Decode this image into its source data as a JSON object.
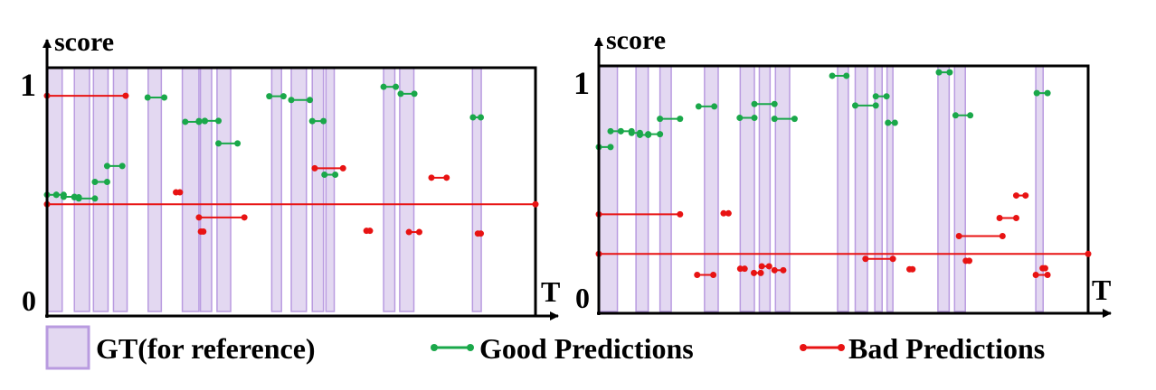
{
  "colors": {
    "gt_fill": "#e3d8f1",
    "gt_stroke": "#b99be0",
    "good": "#1aa84a",
    "bad": "#e81313",
    "axis": "#000000"
  },
  "legend": {
    "gt": "GT(for reference)",
    "good": "Good Predictions",
    "bad": "Bad Predictions"
  },
  "chart_data": [
    {
      "type": "interval",
      "title": "",
      "ylabel": "score",
      "xlabel": "T",
      "y_ticks": [
        "0",
        "1"
      ],
      "ylim": [
        0,
        1
      ],
      "xlim": [
        0,
        1
      ],
      "gt": [
        [
          0.0,
          0.031
        ],
        [
          0.056,
          0.087
        ],
        [
          0.095,
          0.125
        ],
        [
          0.136,
          0.164
        ],
        [
          0.207,
          0.234
        ],
        [
          0.277,
          0.311
        ],
        [
          0.314,
          0.337
        ],
        [
          0.348,
          0.376
        ],
        [
          0.46,
          0.48
        ],
        [
          0.5,
          0.531
        ],
        [
          0.543,
          0.566
        ],
        [
          0.571,
          0.588
        ],
        [
          0.689,
          0.712
        ],
        [
          0.722,
          0.751
        ],
        [
          0.871,
          0.889
        ]
      ],
      "good": [
        [
          0.0,
          0.019,
          0.488
        ],
        [
          0.019,
          0.034,
          0.488
        ],
        [
          0.034,
          0.056,
          0.48
        ],
        [
          0.056,
          0.065,
          0.478
        ],
        [
          0.065,
          0.098,
          0.473
        ],
        [
          0.098,
          0.123,
          0.54
        ],
        [
          0.123,
          0.154,
          0.604
        ],
        [
          0.206,
          0.24,
          0.88
        ],
        [
          0.283,
          0.311,
          0.782
        ],
        [
          0.311,
          0.323,
          0.785
        ],
        [
          0.323,
          0.351,
          0.786
        ],
        [
          0.351,
          0.39,
          0.695
        ],
        [
          0.455,
          0.484,
          0.885
        ],
        [
          0.5,
          0.538,
          0.87
        ],
        [
          0.543,
          0.566,
          0.785
        ],
        [
          0.568,
          0.59,
          0.569
        ],
        [
          0.689,
          0.714,
          0.923
        ],
        [
          0.724,
          0.752,
          0.895
        ],
        [
          0.872,
          0.888,
          0.8
        ]
      ],
      "bad": [
        [
          0.0,
          0.161,
          0.887
        ],
        [
          0.0,
          1.0,
          0.45
        ],
        [
          0.264,
          0.272,
          0.498
        ],
        [
          0.311,
          0.404,
          0.397
        ],
        [
          0.315,
          0.32,
          0.34
        ],
        [
          0.548,
          0.606,
          0.595
        ],
        [
          0.654,
          0.661,
          0.343
        ],
        [
          0.741,
          0.762,
          0.338
        ],
        [
          0.787,
          0.818,
          0.557
        ],
        [
          0.882,
          0.888,
          0.332
        ]
      ]
    },
    {
      "type": "interval",
      "title": "",
      "ylabel": "score",
      "xlabel": "T",
      "y_ticks": [
        "0",
        "1"
      ],
      "ylim": [
        0,
        1
      ],
      "xlim": [
        0,
        1
      ],
      "gt": [
        [
          0.0,
          0.038
        ],
        [
          0.076,
          0.101
        ],
        [
          0.125,
          0.148
        ],
        [
          0.216,
          0.244
        ],
        [
          0.289,
          0.318
        ],
        [
          0.328,
          0.35
        ],
        [
          0.361,
          0.39
        ],
        [
          0.488,
          0.51
        ],
        [
          0.524,
          0.549
        ],
        [
          0.564,
          0.579
        ],
        [
          0.589,
          0.601
        ],
        [
          0.693,
          0.716
        ],
        [
          0.727,
          0.749
        ],
        [
          0.893,
          0.908
        ]
      ],
      "good": [
        [
          0.0,
          0.024,
          0.672
        ],
        [
          0.024,
          0.045,
          0.736
        ],
        [
          0.045,
          0.067,
          0.736
        ],
        [
          0.067,
          0.084,
          0.729
        ],
        [
          0.084,
          0.101,
          0.721
        ],
        [
          0.101,
          0.125,
          0.724
        ],
        [
          0.125,
          0.166,
          0.786
        ],
        [
          0.204,
          0.236,
          0.836
        ],
        [
          0.288,
          0.318,
          0.79
        ],
        [
          0.318,
          0.359,
          0.846
        ],
        [
          0.359,
          0.4,
          0.786
        ],
        [
          0.477,
          0.506,
          0.96
        ],
        [
          0.524,
          0.566,
          0.84
        ],
        [
          0.566,
          0.588,
          0.877
        ],
        [
          0.591,
          0.605,
          0.77
        ],
        [
          0.695,
          0.717,
          0.974
        ],
        [
          0.729,
          0.759,
          0.8
        ],
        [
          0.895,
          0.917,
          0.89
        ]
      ],
      "bad": [
        [
          0.0,
          0.166,
          0.4
        ],
        [
          0.0,
          1.0,
          0.24
        ],
        [
          0.201,
          0.234,
          0.155
        ],
        [
          0.255,
          0.265,
          0.404
        ],
        [
          0.289,
          0.298,
          0.18
        ],
        [
          0.317,
          0.331,
          0.163
        ],
        [
          0.333,
          0.348,
          0.19
        ],
        [
          0.359,
          0.377,
          0.174
        ],
        [
          0.545,
          0.601,
          0.22
        ],
        [
          0.635,
          0.641,
          0.178
        ],
        [
          0.736,
          0.825,
          0.312
        ],
        [
          0.75,
          0.757,
          0.212
        ],
        [
          0.819,
          0.853,
          0.385
        ],
        [
          0.853,
          0.872,
          0.476
        ],
        [
          0.893,
          0.917,
          0.155
        ],
        [
          0.907,
          0.912,
          0.182
        ]
      ]
    }
  ]
}
